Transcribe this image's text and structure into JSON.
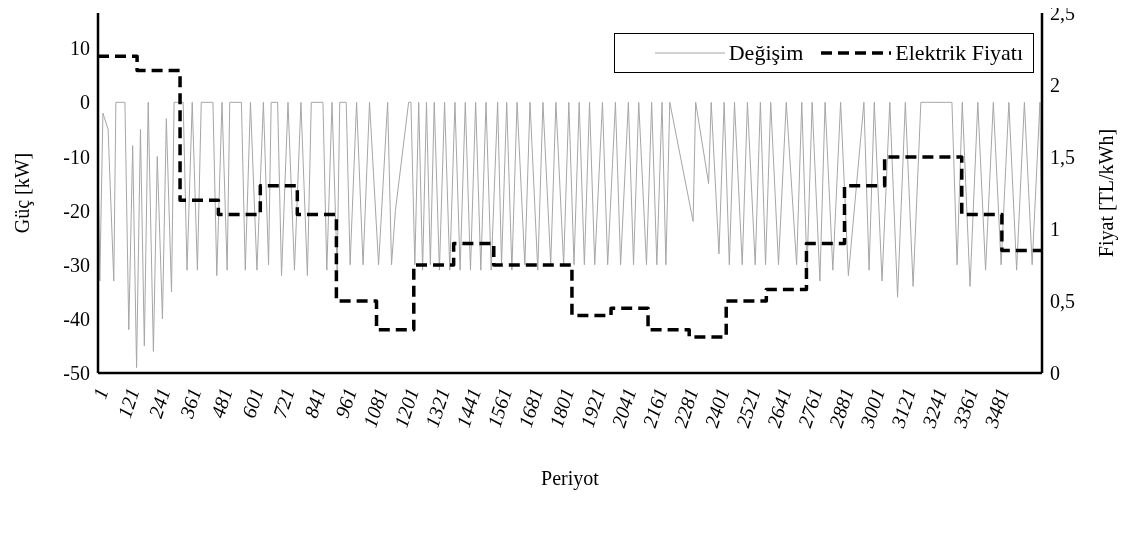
{
  "chart_data": {
    "type": "line",
    "xlabel": "Periyot",
    "ylabel": "Güç [kW]",
    "y2label": "Fiyat [TL/kWh]",
    "xlim": [
      1,
      3648
    ],
    "xticks": [
      1,
      121,
      241,
      361,
      481,
      601,
      721,
      841,
      961,
      1081,
      1201,
      1321,
      1441,
      1561,
      1681,
      1801,
      1921,
      2041,
      2161,
      2281,
      2401,
      2521,
      2641,
      2761,
      2881,
      3001,
      3121,
      3241,
      3361,
      3481
    ],
    "ylim": [
      -50,
      16.5
    ],
    "yticks": [
      -50,
      -40,
      -30,
      -20,
      -10,
      0,
      10
    ],
    "y2lim": [
      0,
      2.5
    ],
    "y2ticks": [
      0,
      {
        "value": 0.5,
        "label": "0,5"
      },
      1,
      {
        "value": 1.5,
        "label": "1,5"
      },
      2,
      {
        "value": 2.5,
        "label": "2,5"
      }
    ],
    "grid": false,
    "legend": "top right",
    "marker": "none",
    "series": [
      {
        "name": "Değişim",
        "color": "#a6a6a6",
        "line_style": "solid",
        "x": [
          1,
          8,
          20,
          40,
          62,
          70,
          105,
          120,
          135,
          150,
          165,
          180,
          195,
          215,
          230,
          250,
          265,
          285,
          295,
          330,
          345,
          365,
          385,
          400,
          445,
          460,
          480,
          500,
          510,
          555,
          570,
          590,
          615,
          640,
          660,
          670,
          695,
          710,
          735,
          760,
          785,
          810,
          825,
          870,
          885,
          905,
          925,
          935,
          960,
          975,
          1000,
          1025,
          1050,
          1085,
          1120,
          1135,
          1150,
          1201,
          1210,
          1225,
          1240,
          1255,
          1270,
          1285,
          1300,
          1320,
          1340,
          1360,
          1380,
          1400,
          1420,
          1440,
          1460,
          1480,
          1500,
          1520,
          1545,
          1560,
          1580,
          1600,
          1620,
          1650,
          1670,
          1700,
          1720,
          1750,
          1770,
          1800,
          1820,
          1840,
          1860,
          1880,
          1900,
          1920,
          1950,
          1970,
          2000,
          2020,
          2050,
          2070,
          2090,
          2120,
          2140,
          2160,
          2180,
          2195,
          2210,
          2300,
          2310,
          2360,
          2370,
          2400,
          2420,
          2440,
          2460,
          2490,
          2510,
          2540,
          2560,
          2580,
          2600,
          2630,
          2660,
          2700,
          2720,
          2740,
          2760,
          2790,
          2810,
          2840,
          2870,
          2900,
          2960,
          2980,
          3000,
          3030,
          3060,
          3090,
          3120,
          3150,
          3180,
          3220,
          3300,
          3320,
          3340,
          3370,
          3400,
          3430,
          3460,
          3490,
          3520,
          3550,
          3580,
          3610,
          3640,
          3648
        ],
        "values": [
          -10,
          -33,
          -2,
          -5,
          -33,
          0,
          0,
          -42,
          -8,
          -49,
          -5,
          -45,
          0,
          -46,
          -10,
          -40,
          -3,
          -35,
          0,
          0,
          -31,
          0,
          -31,
          0,
          0,
          -32,
          0,
          -31,
          0,
          0,
          -31,
          0,
          -31,
          0,
          -30,
          0,
          0,
          -32,
          0,
          -31,
          0,
          -32,
          0,
          0,
          -31,
          0,
          -31,
          0,
          0,
          -30,
          0,
          -30,
          0,
          -30,
          0,
          -30,
          -20,
          0,
          0,
          -30,
          0,
          -31,
          0,
          -30,
          0,
          -31,
          0,
          -31,
          0,
          -31,
          0,
          -31,
          0,
          -31,
          0,
          -31,
          0,
          -30,
          0,
          -31,
          0,
          -30,
          0,
          -31,
          0,
          -30,
          0,
          -30,
          0,
          -30,
          0,
          -30,
          0,
          -30,
          0,
          -30,
          0,
          -30,
          0,
          -30,
          0,
          -30,
          0,
          -30,
          0,
          -30,
          0,
          -22,
          0,
          -15,
          0,
          -28,
          0,
          -30,
          0,
          -30,
          0,
          -30,
          0,
          -30,
          0,
          -30,
          0,
          -30,
          0,
          -31,
          0,
          -33,
          0,
          -31,
          0,
          -32,
          0,
          -31,
          0,
          -33,
          0,
          -36,
          0,
          -34,
          0,
          0,
          0,
          -30,
          0,
          -34,
          0,
          -31,
          0,
          -30,
          0,
          -31,
          0,
          -30,
          0,
          -31
        ]
      },
      {
        "name": "Elektrik Fiyatı",
        "type": "step",
        "axis": "y2",
        "color": "#000000",
        "line_style": "dashed",
        "x": [
          1,
          152,
          318,
          466,
          628,
          771,
          922,
          1077,
          1221,
          1375,
          1530,
          1832,
          1983,
          2126,
          2285,
          2428,
          2583,
          2738,
          2885,
          3040,
          3338,
          3493,
          3648
        ],
        "values": [
          2.2,
          2.1,
          1.2,
          1.1,
          1.3,
          1.1,
          0.5,
          0.3,
          0.75,
          0.9,
          0.75,
          0.4,
          0.45,
          0.3,
          0.25,
          0.5,
          0.58,
          0.9,
          1.3,
          1.5,
          1.1,
          0.85,
          0.85
        ]
      }
    ]
  }
}
